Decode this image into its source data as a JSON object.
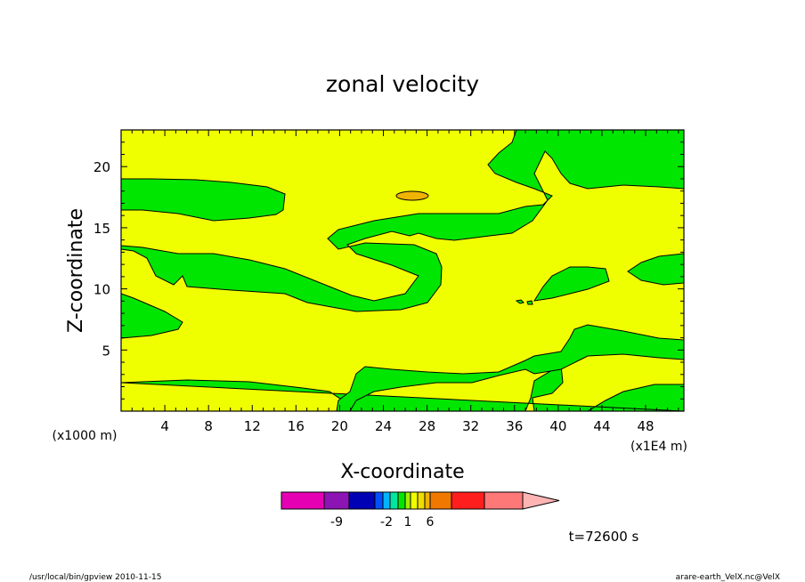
{
  "chart_data": {
    "type": "contour",
    "title": "zonal velocity",
    "xlabel": "X-coordinate",
    "ylabel": "Z-coordinate",
    "x_unit_label": "(x1000 m)",
    "x_scale_label": "(x1E4 m)",
    "xlim": [
      0,
      51.5
    ],
    "ylim": [
      0,
      23
    ],
    "x_ticks": [
      4,
      8,
      12,
      16,
      20,
      24,
      28,
      32,
      36,
      40,
      44,
      48
    ],
    "y_ticks": [
      5,
      10,
      15,
      20
    ],
    "fill_colors": {
      "positive": "#f0ff00",
      "negative": "#00e600",
      "max": "#f0b400"
    },
    "colorbar": {
      "colors": [
        "#e600b4",
        "#8c14b4",
        "#0000b4",
        "#0050ff",
        "#00b4ff",
        "#00e6a0",
        "#00e600",
        "#a0f000",
        "#f0ff00",
        "#f0dc00",
        "#f0b400",
        "#f07800",
        "#ff1e1e",
        "#ff7878",
        "#ffb4b4"
      ],
      "labels": [
        {
          "text": "-9",
          "index": 1.5
        },
        {
          "text": "-2",
          "index": 4.5
        },
        {
          "text": "1",
          "index": 7.5
        },
        {
          "text": "6",
          "index": 11.0
        }
      ]
    },
    "time_label": "t=72600 s",
    "footer_left": "/usr/local/bin/gpview   2010-11-15",
    "footer_right": "arare-earth_VelX.nc@VelX"
  }
}
